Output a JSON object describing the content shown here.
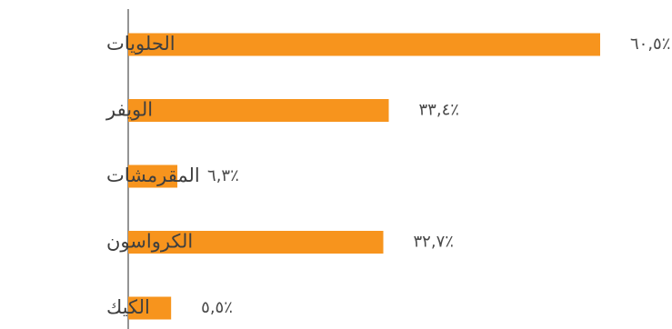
{
  "chart_data": {
    "type": "bar",
    "orientation": "horizontal",
    "categories": [
      "الحلويات",
      "الويفر",
      "المقرمشات",
      "الكرواسون",
      "الكيك"
    ],
    "values": [
      60.5,
      33.4,
      6.3,
      32.7,
      5.5
    ],
    "data_labels": [
      "٦٠,٥٪",
      "٣٣,٤٪",
      "٦,٣٪",
      "٣٢,٧٪",
      "٥,٥٪"
    ],
    "xlim": [
      0,
      60.5
    ],
    "grid": false,
    "legend": "none",
    "colors": {
      "bar": "#F7941D",
      "axis": "#4d4d4d",
      "label": "#3f3f3f"
    }
  }
}
